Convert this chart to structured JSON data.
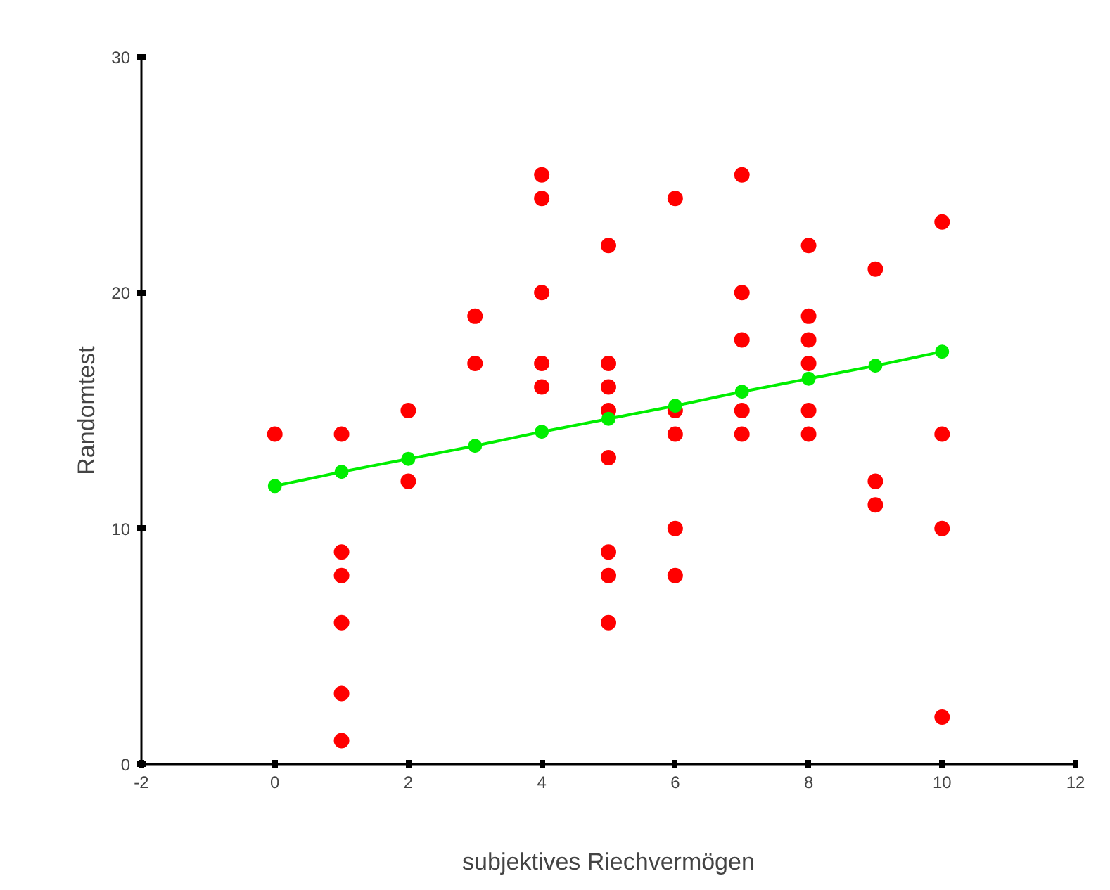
{
  "chart_data": {
    "type": "scatter",
    "xlabel": "subjektives Riechvermögen",
    "ylabel": "Randomtest",
    "xlim": [
      -2,
      12
    ],
    "ylim": [
      0,
      30
    ],
    "xticks": [
      -2,
      0,
      2,
      4,
      6,
      8,
      10,
      12
    ],
    "yticks": [
      0,
      10,
      20,
      30
    ],
    "marker": "circle",
    "series": [
      {
        "color": "#ff0000",
        "x": [
          0,
          1,
          1,
          1,
          1,
          1,
          1,
          2,
          2,
          3,
          3,
          4,
          4,
          4,
          4,
          4,
          5,
          5,
          5,
          5,
          5,
          5,
          5,
          5,
          6,
          6,
          6,
          6,
          6,
          7,
          7,
          7,
          7,
          7,
          8,
          8,
          8,
          8,
          8,
          8,
          9,
          9,
          9,
          10,
          10,
          10,
          10
        ],
        "values": [
          14,
          14,
          9,
          8,
          6,
          3,
          1,
          15,
          12,
          19,
          17,
          25,
          24,
          20,
          17,
          16,
          22,
          17,
          16,
          15,
          13,
          9,
          8,
          6,
          24,
          15,
          14,
          10,
          8,
          25,
          20,
          18,
          15,
          14,
          22,
          19,
          18,
          17,
          15,
          14,
          21,
          12,
          11,
          23,
          14,
          10,
          2
        ]
      },
      {
        "type": "line",
        "color": "#00ee00",
        "x": [
          0,
          1,
          2,
          3,
          4,
          5,
          6,
          7,
          8,
          9,
          10
        ],
        "values": [
          11.8,
          12.4,
          12.95,
          13.5,
          14.1,
          14.65,
          15.2,
          15.8,
          16.35,
          16.9,
          17.5
        ]
      }
    ]
  }
}
